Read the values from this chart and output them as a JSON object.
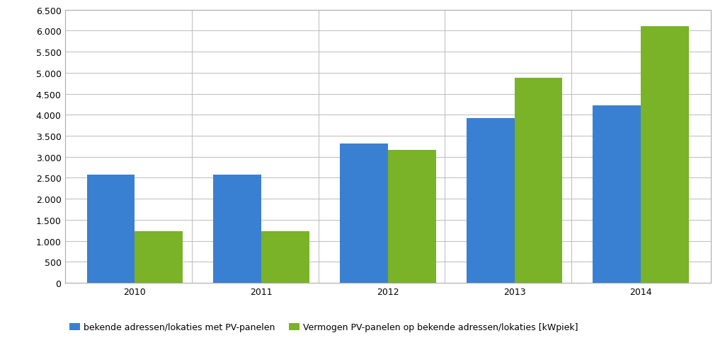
{
  "years": [
    "2010",
    "2011",
    "2012",
    "2013",
    "2014"
  ],
  "blue_values": [
    2570,
    2580,
    3310,
    3920,
    4230
  ],
  "green_values": [
    1220,
    1220,
    3160,
    4880,
    6100
  ],
  "blue_color": "#3a80d2",
  "green_color": "#7ab228",
  "ylim": [
    0,
    6500
  ],
  "yticks": [
    0,
    500,
    1000,
    1500,
    2000,
    2500,
    3000,
    3500,
    4000,
    4500,
    5000,
    5500,
    6000,
    6500
  ],
  "ytick_labels": [
    "0",
    "500",
    "1.000",
    "1.500",
    "2.000",
    "2.500",
    "3.000",
    "3.500",
    "4.000",
    "4.500",
    "5.000",
    "5.500",
    "6.000",
    "6.500"
  ],
  "legend_blue": "bekende adressen/lokaties met PV-panelen",
  "legend_green": "Vermogen PV-panelen op bekende adressen/lokaties [kWpiek]",
  "bar_width": 0.38,
  "background_color": "#ffffff",
  "grid_color": "#bbbbbb",
  "border_color": "#aaaaaa",
  "tick_fontsize": 9,
  "legend_fontsize": 9
}
